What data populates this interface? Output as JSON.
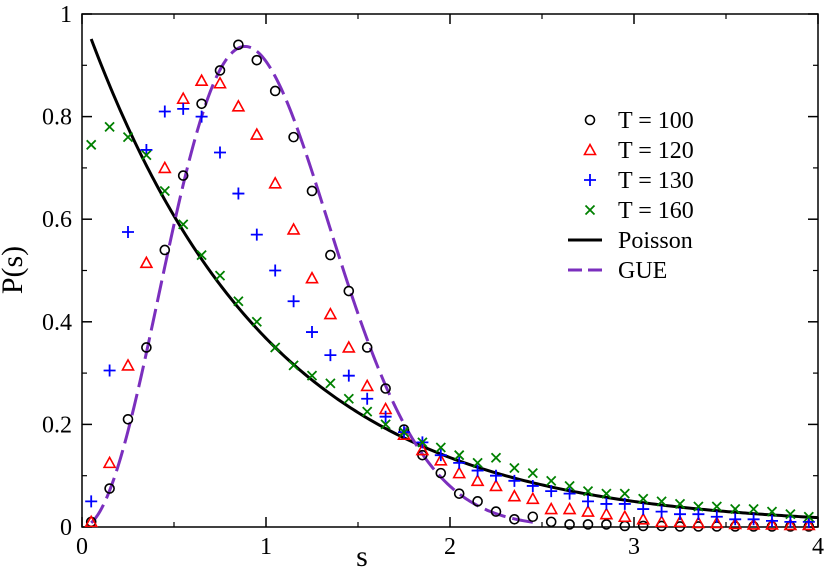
{
  "chart_data": {
    "type": "scatter",
    "title": "",
    "xlabel": "s",
    "ylabel": "P(s)",
    "xlim": [
      0,
      4
    ],
    "ylim": [
      0,
      1
    ],
    "xticks": [
      "0",
      "1",
      "2",
      "3",
      "4"
    ],
    "yticks": [
      "0",
      "0.2",
      "0.4",
      "0.6",
      "0.8",
      "1"
    ],
    "grid": false,
    "legend_position": "top-right",
    "series": [
      {
        "name": "T = 100",
        "kind": "marker",
        "marker": "circle",
        "color": "#000000",
        "x": [
          0.05,
          0.15,
          0.25,
          0.35,
          0.45,
          0.55,
          0.65,
          0.75,
          0.85,
          0.95,
          1.05,
          1.15,
          1.25,
          1.35,
          1.45,
          1.55,
          1.65,
          1.75,
          1.85,
          1.95,
          2.05,
          2.15,
          2.25,
          2.35,
          2.45,
          2.55,
          2.65,
          2.75,
          2.85,
          2.95,
          3.05,
          3.15,
          3.25,
          3.35,
          3.45,
          3.55,
          3.65,
          3.75,
          3.85,
          3.95
        ],
        "y": [
          0.01,
          0.075,
          0.21,
          0.35,
          0.54,
          0.685,
          0.825,
          0.89,
          0.94,
          0.91,
          0.85,
          0.76,
          0.655,
          0.53,
          0.46,
          0.35,
          0.27,
          0.19,
          0.14,
          0.105,
          0.065,
          0.05,
          0.03,
          0.015,
          0.02,
          0.01,
          0.005,
          0.005,
          0.005,
          0.002,
          0.002,
          0.002,
          0.001,
          0.001,
          0.001,
          0.001,
          0.001,
          0.001,
          0.001,
          0.001
        ]
      },
      {
        "name": "T = 120",
        "kind": "marker",
        "marker": "triangle",
        "color": "#ff0000",
        "x": [
          0.05,
          0.15,
          0.25,
          0.35,
          0.45,
          0.55,
          0.65,
          0.75,
          0.85,
          0.95,
          1.05,
          1.15,
          1.25,
          1.35,
          1.45,
          1.55,
          1.65,
          1.75,
          1.85,
          1.95,
          2.05,
          2.15,
          2.25,
          2.35,
          2.45,
          2.55,
          2.65,
          2.75,
          2.85,
          2.95,
          3.05,
          3.15,
          3.25,
          3.35,
          3.45,
          3.55,
          3.65,
          3.75,
          3.85,
          3.95
        ],
        "y": [
          0.01,
          0.125,
          0.315,
          0.515,
          0.7,
          0.835,
          0.87,
          0.865,
          0.82,
          0.765,
          0.67,
          0.58,
          0.485,
          0.415,
          0.35,
          0.275,
          0.23,
          0.18,
          0.15,
          0.13,
          0.105,
          0.09,
          0.08,
          0.06,
          0.055,
          0.035,
          0.035,
          0.03,
          0.025,
          0.02,
          0.015,
          0.01,
          0.01,
          0.008,
          0.008,
          0.006,
          0.005,
          0.005,
          0.004,
          0.004
        ]
      },
      {
        "name": "T = 130",
        "kind": "marker",
        "marker": "plus",
        "color": "#0000ff",
        "x": [
          0.05,
          0.15,
          0.25,
          0.35,
          0.45,
          0.55,
          0.65,
          0.75,
          0.85,
          0.95,
          1.05,
          1.15,
          1.25,
          1.35,
          1.45,
          1.55,
          1.65,
          1.75,
          1.85,
          1.95,
          2.05,
          2.15,
          2.25,
          2.35,
          2.45,
          2.55,
          2.65,
          2.75,
          2.85,
          2.95,
          3.05,
          3.15,
          3.25,
          3.35,
          3.45,
          3.55,
          3.65,
          3.75,
          3.85,
          3.95
        ],
        "y": [
          0.05,
          0.305,
          0.575,
          0.735,
          0.81,
          0.815,
          0.8,
          0.73,
          0.65,
          0.57,
          0.5,
          0.44,
          0.38,
          0.335,
          0.295,
          0.25,
          0.215,
          0.185,
          0.165,
          0.14,
          0.125,
          0.11,
          0.1,
          0.09,
          0.08,
          0.07,
          0.065,
          0.05,
          0.045,
          0.045,
          0.035,
          0.03,
          0.025,
          0.025,
          0.02,
          0.015,
          0.015,
          0.012,
          0.01,
          0.01
        ]
      },
      {
        "name": "T = 160",
        "kind": "marker",
        "marker": "cross",
        "color": "#008000",
        "x": [
          0.05,
          0.15,
          0.25,
          0.35,
          0.45,
          0.55,
          0.65,
          0.75,
          0.85,
          0.95,
          1.05,
          1.15,
          1.25,
          1.35,
          1.45,
          1.55,
          1.65,
          1.75,
          1.85,
          1.95,
          2.05,
          2.15,
          2.25,
          2.35,
          2.45,
          2.55,
          2.65,
          2.75,
          2.85,
          2.95,
          3.05,
          3.15,
          3.25,
          3.35,
          3.45,
          3.55,
          3.65,
          3.75,
          3.85,
          3.95
        ],
        "y": [
          0.745,
          0.78,
          0.76,
          0.725,
          0.655,
          0.59,
          0.53,
          0.49,
          0.44,
          0.4,
          0.35,
          0.315,
          0.295,
          0.28,
          0.25,
          0.225,
          0.2,
          0.185,
          0.165,
          0.155,
          0.14,
          0.125,
          0.135,
          0.115,
          0.105,
          0.09,
          0.08,
          0.07,
          0.065,
          0.065,
          0.055,
          0.05,
          0.045,
          0.04,
          0.04,
          0.035,
          0.035,
          0.03,
          0.025,
          0.02
        ]
      },
      {
        "name": "Poisson",
        "kind": "line",
        "style": "solid",
        "color": "#000000",
        "formula": "exp(-s)",
        "x_range": [
          0.05,
          4.0
        ]
      },
      {
        "name": "GUE",
        "kind": "line",
        "style": "dashed",
        "color": "#7b2fbe",
        "formula": "(32/pi^2) s^2 exp(-4 s^2/pi)",
        "x_range": [
          0.05,
          2.45
        ]
      }
    ]
  }
}
